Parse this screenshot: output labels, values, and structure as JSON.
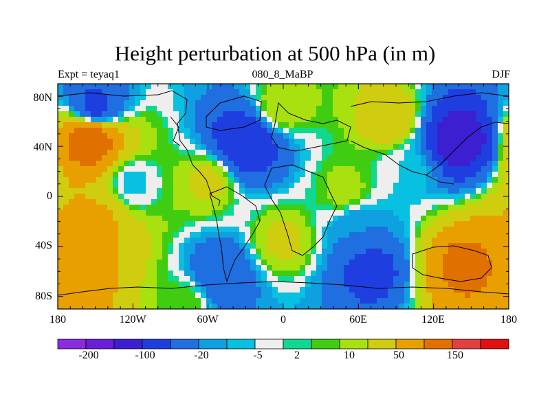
{
  "title": "Height perturbation at 500 hPa (in m)",
  "subtitle_left": "Expt = teyaq1",
  "subtitle_center": "080_8_MaBP",
  "subtitle_right": "DJF",
  "y_ticks": [
    "80N",
    "40N",
    "0",
    "40S",
    "80S"
  ],
  "x_ticks": [
    "180",
    "120W",
    "60W",
    "0",
    "60E",
    "120E",
    "180"
  ],
  "colorbar": {
    "colors": [
      "#8a2be2",
      "#6a1ed8",
      "#3c1fd0",
      "#1f3ee0",
      "#1f6fe0",
      "#0fa0e0",
      "#08c0e0",
      "#eeeeee",
      "#10d890",
      "#40cc10",
      "#a8e010",
      "#d0cc10",
      "#e8a000",
      "#e07000",
      "#e04040",
      "#e01010"
    ],
    "labels": [
      "-200",
      "-100",
      "-20",
      "-5",
      "2",
      "10",
      "50",
      "150"
    ]
  },
  "chart_data": {
    "type": "heatmap",
    "title": "Height perturbation at 500 hPa (in m)",
    "projection": "cylindrical equidistant",
    "lon_range": [
      -180,
      180
    ],
    "lat_range": [
      -90,
      90
    ],
    "x_tick_labels": [
      "180",
      "120W",
      "60W",
      "0",
      "60E",
      "120E",
      "180"
    ],
    "y_tick_labels": [
      "80N",
      "40N",
      "0",
      "40S",
      "80S"
    ],
    "contour_levels_labeled": [
      -200,
      -100,
      -20,
      -5,
      2,
      10,
      50,
      150
    ],
    "features": [
      {
        "lon": -155,
        "lat": 45,
        "value": 150
      },
      {
        "lon": -30,
        "lat": 42,
        "value": -100
      },
      {
        "lon": 140,
        "lat": 45,
        "value": -150
      },
      {
        "lon": -150,
        "lat": 72,
        "value": -60
      },
      {
        "lon": 0,
        "lat": 72,
        "value": 20
      },
      {
        "lon": 85,
        "lat": 62,
        "value": 40
      },
      {
        "lon": -60,
        "lat": 12,
        "value": 25
      },
      {
        "lon": 50,
        "lat": 5,
        "value": 15
      },
      {
        "lon": -150,
        "lat": -22,
        "value": 60
      },
      {
        "lon": -170,
        "lat": -58,
        "value": 90
      },
      {
        "lon": 145,
        "lat": -55,
        "value": 120
      },
      {
        "lon": -50,
        "lat": -62,
        "value": -50
      },
      {
        "lon": 70,
        "lat": -58,
        "value": -70
      },
      {
        "lon": 0,
        "lat": -35,
        "value": 25
      },
      {
        "lon": 60,
        "lat": -25,
        "value": -20
      },
      {
        "lon": -80,
        "lat": -85,
        "value": 10
      },
      {
        "lon": 100,
        "lat": 20,
        "value": -5
      },
      {
        "lon": -120,
        "lat": 10,
        "value": -8
      }
    ]
  }
}
